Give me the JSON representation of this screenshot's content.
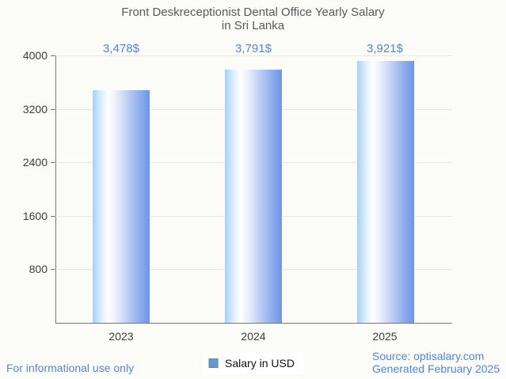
{
  "title": {
    "line1": "Front Deskreceptionist Dental Office Yearly Salary",
    "line2": "in Sri Lanka"
  },
  "chart_data": {
    "type": "bar",
    "title": "Front Deskreceptionist Dental Office Yearly Salary in Sri Lanka",
    "categories": [
      "2023",
      "2024",
      "2025"
    ],
    "values": [
      3478,
      3791,
      3921
    ],
    "value_labels": [
      "3,478$",
      "3,791$",
      "3,921$"
    ],
    "series_name": "Salary in USD",
    "xlabel": "",
    "ylabel": "",
    "ylim": [
      0,
      4000
    ],
    "yticks": [
      800,
      1600,
      2400,
      3200,
      4000
    ],
    "grid": true,
    "legend_position": "bottom-center"
  },
  "legend": {
    "label": "Salary in USD",
    "swatch_color": "#5b9bd5",
    "swatch_border": "#7f7f7f"
  },
  "footer": {
    "left_note": "For informational use only",
    "source": "Source: optisalary.com",
    "generated": "Generated February 2025"
  },
  "colors": {
    "background": "#fbfbf8",
    "title_text": "#58595b",
    "value_label": "#5585d8",
    "axis_text": "#3d3d3d",
    "gridline": "#e7e7e4",
    "axis_line": "#777777",
    "bar_gradient_left": "#a4d1fc",
    "bar_gradient_mid": "#ffffff",
    "bar_gradient_right": "#6e95e7",
    "footer_link": "#5585d8"
  }
}
